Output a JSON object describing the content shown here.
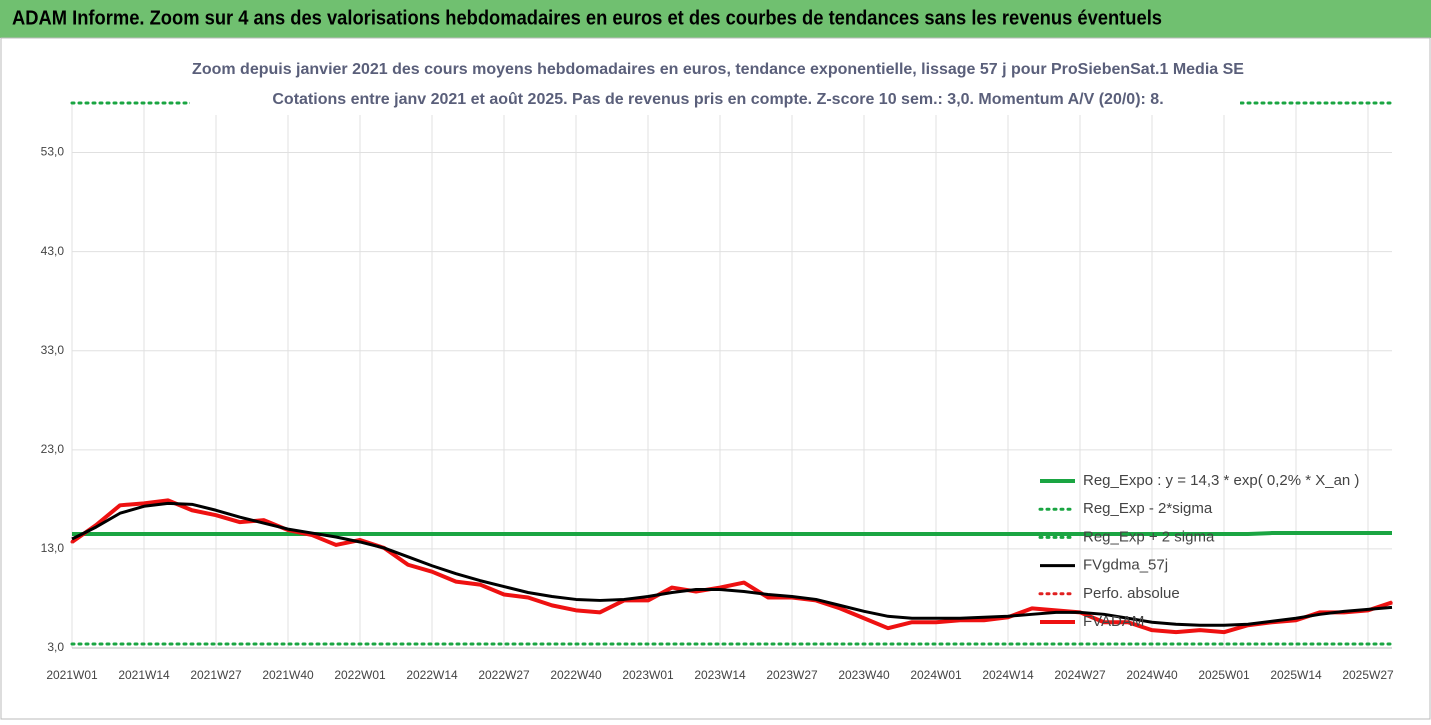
{
  "chart_data": {
    "type": "line",
    "header": "ADAM Informe. Zoom sur 4 ans des valorisations hebdomadaires en euros et des courbes de tendances sans les revenus éventuels",
    "title": "Zoom depuis janvier 2021 des cours moyens hebdomadaires en euros, tendance exponentielle, lissage 57 j pour ProSiebenSat.1 Media SE",
    "subtitle": "Cotations entre janv 2021 et août 2025.  Pas de revenus pris en compte. Z-score 10 sem.: 3,0. Momentum A/V (20/0): 8.",
    "categories": [
      "2021W01",
      null,
      null,
      "2021W14",
      null,
      null,
      "2021W27",
      null,
      null,
      "2021W40",
      null,
      null,
      "2022W01",
      null,
      null,
      "2022W14",
      null,
      null,
      "2022W27",
      null,
      null,
      "2022W40",
      null,
      null,
      "2023W01",
      null,
      null,
      "2023W14",
      null,
      null,
      "2023W27",
      null,
      null,
      "2023W40",
      null,
      null,
      "2024W01",
      null,
      null,
      "2024W14",
      null,
      null,
      "2024W27",
      null,
      null,
      "2024W40",
      null,
      null,
      "2025W01",
      null,
      null,
      "2025W14",
      null,
      null,
      "2025W27",
      null
    ],
    "ylim": [
      3,
      58
    ],
    "yticks": [
      {
        "value": 3,
        "label": "3,0"
      },
      {
        "value": 13,
        "label": "13,0"
      },
      {
        "value": 23,
        "label": "23,0"
      },
      {
        "value": 33,
        "label": "33,0"
      },
      {
        "value": 43,
        "label": "43,0"
      },
      {
        "value": 53,
        "label": "53,0"
      }
    ],
    "grid": true,
    "legend": "right",
    "series": [
      {
        "name": "Reg_Expo : y = 14,3 * exp( 0,2% *  X_an )",
        "color": "#1aa542",
        "style": "solid",
        "width": 4,
        "values": [
          14.5,
          14.5,
          14.5,
          14.5,
          14.5,
          14.5,
          14.5,
          14.5,
          14.5,
          14.5,
          14.5,
          14.5,
          14.5,
          14.5,
          14.5,
          14.5,
          14.5,
          14.5,
          14.5,
          14.5,
          14.5,
          14.5,
          14.5,
          14.5,
          14.5,
          14.5,
          14.5,
          14.5,
          14.5,
          14.5,
          14.5,
          14.5,
          14.5,
          14.5,
          14.5,
          14.5,
          14.5,
          14.5,
          14.5,
          14.5,
          14.5,
          14.5,
          14.5,
          14.5,
          14.5,
          14.5,
          14.5,
          14.5,
          14.5,
          14.5,
          14.6,
          14.6,
          14.6,
          14.6,
          14.6,
          14.6
        ]
      },
      {
        "name": "Reg_Exp - 2*sigma",
        "color": "#1aa542",
        "style": "dotted",
        "width": 3,
        "values": [
          3.4,
          3.4,
          3.4,
          3.4,
          3.4,
          3.4,
          3.4,
          3.4,
          3.4,
          3.4,
          3.4,
          3.4,
          3.4,
          3.4,
          3.4,
          3.4,
          3.4,
          3.4,
          3.4,
          3.4,
          3.4,
          3.4,
          3.4,
          3.4,
          3.4,
          3.4,
          3.4,
          3.4,
          3.4,
          3.4,
          3.4,
          3.4,
          3.4,
          3.4,
          3.4,
          3.4,
          3.4,
          3.4,
          3.4,
          3.4,
          3.4,
          3.4,
          3.4,
          3.4,
          3.4,
          3.4,
          3.4,
          3.4,
          3.4,
          3.4,
          3.4,
          3.4,
          3.4,
          3.4,
          3.4,
          3.4
        ]
      },
      {
        "name": "Reg_Exp + 2 sigma",
        "color": "#1aa542",
        "style": "dotted",
        "width": 3,
        "values": [
          58,
          58,
          58,
          58,
          58,
          58,
          58,
          58,
          58,
          58,
          58,
          58,
          58,
          58,
          58,
          58,
          58,
          58,
          58,
          58,
          58,
          58,
          58,
          58,
          58,
          58,
          58,
          58,
          58,
          58,
          58,
          58,
          58,
          58,
          58,
          58,
          58,
          58,
          58,
          58,
          58,
          58,
          58,
          58,
          58,
          58,
          58,
          58,
          58,
          58,
          58,
          58,
          58,
          58,
          58,
          58
        ]
      },
      {
        "name": "FVgdma_57j",
        "color": "#000000",
        "style": "solid",
        "width": 3,
        "values": [
          14.0,
          15.2,
          16.6,
          17.3,
          17.6,
          17.5,
          16.9,
          16.2,
          15.6,
          15.0,
          14.6,
          14.2,
          13.7,
          13.1,
          12.2,
          11.3,
          10.5,
          9.8,
          9.2,
          8.6,
          8.2,
          7.9,
          7.8,
          7.9,
          8.2,
          8.6,
          8.9,
          8.9,
          8.7,
          8.4,
          8.2,
          7.9,
          7.3,
          6.7,
          6.2,
          6.0,
          6.0,
          6.0,
          6.1,
          6.2,
          6.4,
          6.6,
          6.6,
          6.4,
          6.0,
          5.6,
          5.4,
          5.3,
          5.3,
          5.4,
          5.7,
          6.0,
          6.4,
          6.7,
          6.9,
          7.1
        ]
      },
      {
        "name": "Perfo. absolue",
        "color": "#e02020",
        "style": "dotted",
        "width": 3,
        "values": [
          13.7,
          15.4,
          17.4,
          17.6,
          17.9,
          16.9,
          16.4,
          15.7,
          15.9,
          14.9,
          14.4,
          13.4,
          13.9,
          13.1,
          11.4,
          10.7,
          9.7,
          9.4,
          8.4,
          8.1,
          7.3,
          6.8,
          6.6,
          7.8,
          7.8,
          9.1,
          8.7,
          9.1,
          9.6,
          8.1,
          8.1,
          7.8,
          7.0,
          6.0,
          5.0,
          5.6,
          5.6,
          5.8,
          5.8,
          6.1,
          7.0,
          6.8,
          6.6,
          5.6,
          5.6,
          4.8,
          4.6,
          4.8,
          4.6,
          5.3,
          5.6,
          5.8,
          6.6,
          6.6,
          6.8,
          7.6
        ]
      },
      {
        "name": "FVADAM",
        "color": "#ee1111",
        "style": "solid",
        "width": 4,
        "values": [
          13.7,
          15.4,
          17.4,
          17.6,
          17.9,
          16.9,
          16.4,
          15.7,
          15.9,
          14.9,
          14.4,
          13.4,
          13.9,
          13.1,
          11.4,
          10.7,
          9.7,
          9.4,
          8.4,
          8.1,
          7.3,
          6.8,
          6.6,
          7.8,
          7.8,
          9.1,
          8.7,
          9.1,
          9.6,
          8.1,
          8.1,
          7.8,
          7.0,
          6.0,
          5.0,
          5.6,
          5.6,
          5.8,
          5.8,
          6.1,
          7.0,
          6.8,
          6.6,
          5.6,
          5.6,
          4.8,
          4.6,
          4.8,
          4.6,
          5.3,
          5.6,
          5.8,
          6.6,
          6.6,
          6.8,
          7.6
        ]
      }
    ]
  }
}
